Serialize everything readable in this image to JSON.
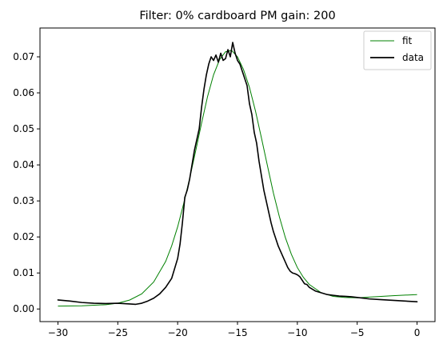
{
  "chart_data": {
    "type": "line",
    "title": "Filter: 0% cardboard PM gain: 200",
    "xlabel": "",
    "ylabel": "",
    "xlim": [
      -31.5,
      1.5
    ],
    "ylim": [
      -0.0035,
      0.078
    ],
    "x_ticks": [
      -30,
      -25,
      -20,
      -15,
      -10,
      -5,
      0
    ],
    "y_ticks": [
      0.0,
      0.01,
      0.02,
      0.03,
      0.04,
      0.05,
      0.06,
      0.07
    ],
    "x_tick_labels": [
      "−30",
      "−25",
      "−20",
      "−15",
      "−10",
      "−5",
      "0"
    ],
    "y_tick_labels": [
      "0.00",
      "0.01",
      "0.02",
      "0.03",
      "0.04",
      "0.05",
      "0.06",
      "0.07"
    ],
    "grid": false,
    "legend_position": "top-right",
    "series": [
      {
        "name": "fit",
        "color": "#008000",
        "x": [
          -30,
          -28,
          -26,
          -25,
          -24,
          -23,
          -22,
          -21,
          -20.5,
          -20,
          -19.5,
          -19,
          -18.5,
          -18,
          -17.5,
          -17,
          -16.5,
          -16,
          -15.5,
          -15,
          -14.5,
          -14,
          -13.5,
          -13,
          -12.5,
          -12,
          -11.5,
          -11,
          -10.5,
          -10,
          -9.5,
          -9,
          -8,
          -7,
          -6,
          -5,
          -4,
          -2,
          0
        ],
        "values": [
          0.0008,
          0.0009,
          0.0012,
          0.0016,
          0.0025,
          0.0042,
          0.0075,
          0.0132,
          0.0175,
          0.0228,
          0.0292,
          0.0362,
          0.0438,
          0.0516,
          0.059,
          0.065,
          0.0692,
          0.0714,
          0.0718,
          0.07,
          0.0665,
          0.0615,
          0.055,
          0.0475,
          0.0398,
          0.0322,
          0.0256,
          0.0198,
          0.0152,
          0.0115,
          0.0088,
          0.0068,
          0.0045,
          0.0035,
          0.0032,
          0.0031,
          0.0033,
          0.0037,
          0.004
        ]
      },
      {
        "name": "data",
        "color": "#000000",
        "x": [
          -30,
          -29,
          -28,
          -27,
          -26,
          -25,
          -24,
          -23.5,
          -23,
          -22.5,
          -22,
          -21.5,
          -21,
          -20.5,
          -20,
          -19.8,
          -19.6,
          -19.4,
          -19.2,
          -19,
          -18.8,
          -18.6,
          -18.4,
          -18.2,
          -18,
          -17.8,
          -17.6,
          -17.4,
          -17.2,
          -17,
          -16.8,
          -16.6,
          -16.4,
          -16.2,
          -16,
          -15.8,
          -15.6,
          -15.4,
          -15.2,
          -15,
          -14.8,
          -14.6,
          -14.4,
          -14.2,
          -14,
          -13.8,
          -13.6,
          -13.4,
          -13.2,
          -13,
          -12.8,
          -12.6,
          -12.4,
          -12.2,
          -12,
          -11.8,
          -11.6,
          -11.4,
          -11.2,
          -11,
          -10.8,
          -10.6,
          -10.4,
          -10.2,
          -10,
          -9.8,
          -9.6,
          -9.4,
          -9.2,
          -9,
          -8.5,
          -8,
          -7.5,
          -7,
          -6.5,
          -6,
          -5.5,
          -5,
          -4.5,
          -4,
          -3,
          -2,
          -1,
          0
        ],
        "values": [
          0.0025,
          0.0022,
          0.0018,
          0.0016,
          0.0015,
          0.0016,
          0.0014,
          0.0013,
          0.0016,
          0.0022,
          0.003,
          0.0042,
          0.006,
          0.0085,
          0.014,
          0.018,
          0.024,
          0.031,
          0.033,
          0.036,
          0.04,
          0.044,
          0.047,
          0.05,
          0.056,
          0.061,
          0.065,
          0.068,
          0.07,
          0.069,
          0.0705,
          0.0685,
          0.071,
          0.069,
          0.0695,
          0.072,
          0.07,
          0.074,
          0.071,
          0.069,
          0.068,
          0.066,
          0.064,
          0.062,
          0.057,
          0.054,
          0.049,
          0.046,
          0.041,
          0.037,
          0.033,
          0.03,
          0.027,
          0.024,
          0.0215,
          0.0195,
          0.0175,
          0.016,
          0.0145,
          0.013,
          0.0115,
          0.0105,
          0.01,
          0.0098,
          0.0095,
          0.009,
          0.008,
          0.007,
          0.0068,
          0.006,
          0.005,
          0.0045,
          0.004,
          0.0038,
          0.0036,
          0.0035,
          0.0034,
          0.0032,
          0.003,
          0.0028,
          0.0026,
          0.0024,
          0.0022,
          0.002
        ]
      }
    ]
  }
}
